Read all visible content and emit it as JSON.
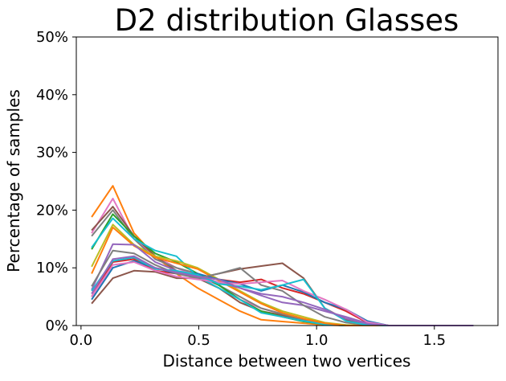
{
  "chart_data": {
    "type": "line",
    "title": "D2 distribution Glasses",
    "xlabel": "Distance between two vertices",
    "ylabel": "Percentage of samples",
    "xlim": [
      -0.02,
      1.77
    ],
    "ylim": [
      0,
      0.5
    ],
    "x_ticks": [
      0.0,
      0.5,
      1.0,
      1.5
    ],
    "x_tick_labels": [
      "0.0",
      "0.5",
      "1.0",
      "1.5"
    ],
    "y_ticks": [
      0,
      0.1,
      0.2,
      0.3,
      0.4,
      0.5
    ],
    "y_tick_labels": [
      "0%",
      "10%",
      "20%",
      "30%",
      "40%",
      "50%"
    ],
    "grid": false,
    "legend": "none",
    "x": [
      0.045,
      0.135,
      0.225,
      0.315,
      0.405,
      0.495,
      0.585,
      0.675,
      0.765,
      0.855,
      0.945,
      1.035,
      1.125,
      1.215,
      1.305,
      1.395,
      1.485,
      1.575,
      1.665
    ],
    "series": [
      {
        "color": "#ff7f0e",
        "values": [
          0.188,
          0.242,
          0.16,
          0.12,
          0.09,
          0.065,
          0.045,
          0.025,
          0.01,
          0.007,
          0.004,
          0.001,
          0.0,
          0.0,
          0.0,
          0.0,
          0.0,
          0.0,
          0.0
        ]
      },
      {
        "color": "#e377c2",
        "values": [
          0.16,
          0.22,
          0.15,
          0.12,
          0.1,
          0.085,
          0.07,
          0.045,
          0.03,
          0.02,
          0.01,
          0.003,
          0.0,
          0.0,
          0.0,
          0.0,
          0.0,
          0.0,
          0.0
        ]
      },
      {
        "color": "#8c564b",
        "values": [
          0.165,
          0.206,
          0.155,
          0.12,
          0.095,
          0.082,
          0.065,
          0.04,
          0.025,
          0.018,
          0.008,
          0.002,
          0.0,
          0.0,
          0.0,
          0.0,
          0.0,
          0.0,
          0.0
        ]
      },
      {
        "color": "#7f7f7f",
        "values": [
          0.155,
          0.2,
          0.15,
          0.115,
          0.1,
          0.09,
          0.07,
          0.05,
          0.03,
          0.02,
          0.01,
          0.002,
          0.0,
          0.0,
          0.0,
          0.0,
          0.0,
          0.0,
          0.0
        ]
      },
      {
        "color": "#2ca02c",
        "values": [
          0.132,
          0.193,
          0.155,
          0.125,
          0.11,
          0.09,
          0.07,
          0.045,
          0.025,
          0.015,
          0.007,
          0.002,
          0.0,
          0.0,
          0.0,
          0.0,
          0.0,
          0.0,
          0.0
        ]
      },
      {
        "color": "#17becf",
        "values": [
          0.135,
          0.186,
          0.15,
          0.13,
          0.12,
          0.085,
          0.065,
          0.045,
          0.022,
          0.015,
          0.008,
          0.002,
          0.0,
          0.0,
          0.0,
          0.0,
          0.0,
          0.0,
          0.0
        ]
      },
      {
        "color": "#bcbd22",
        "values": [
          0.102,
          0.175,
          0.14,
          0.12,
          0.112,
          0.1,
          0.08,
          0.06,
          0.04,
          0.025,
          0.015,
          0.005,
          0.001,
          0.0,
          0.0,
          0.0,
          0.0,
          0.0,
          0.0
        ]
      },
      {
        "color": "#ff7f0e",
        "values": [
          0.09,
          0.17,
          0.138,
          0.118,
          0.108,
          0.098,
          0.078,
          0.058,
          0.038,
          0.022,
          0.012,
          0.004,
          0.0,
          0.0,
          0.0,
          0.0,
          0.0,
          0.0,
          0.0
        ]
      },
      {
        "color": "#d62728",
        "values": [
          0.05,
          0.11,
          0.115,
          0.095,
          0.09,
          0.085,
          0.08,
          0.075,
          0.08,
          0.065,
          0.055,
          0.04,
          0.025,
          0.005,
          0.0,
          0.0,
          0.0,
          0.0,
          0.0
        ]
      },
      {
        "color": "#1f77b4",
        "values": [
          0.045,
          0.1,
          0.112,
          0.1,
          0.09,
          0.09,
          0.08,
          0.072,
          0.06,
          0.07,
          0.058,
          0.04,
          0.028,
          0.008,
          0.0,
          0.0,
          0.0,
          0.0,
          0.0
        ]
      },
      {
        "color": "#9467bd",
        "values": [
          0.062,
          0.141,
          0.14,
          0.11,
          0.095,
          0.085,
          0.075,
          0.065,
          0.052,
          0.04,
          0.035,
          0.025,
          0.015,
          0.004,
          0.0,
          0.0,
          0.0,
          0.0,
          0.0
        ]
      },
      {
        "color": "#8c564b",
        "values": [
          0.038,
          0.082,
          0.095,
          0.093,
          0.082,
          0.082,
          0.09,
          0.098,
          0.103,
          0.108,
          0.082,
          0.03,
          0.01,
          0.002,
          0.0,
          0.0,
          0.0,
          0.0,
          0.0
        ]
      },
      {
        "color": "#7f7f7f",
        "values": [
          0.068,
          0.13,
          0.125,
          0.105,
          0.09,
          0.082,
          0.09,
          0.1,
          0.07,
          0.06,
          0.035,
          0.015,
          0.005,
          0.001,
          0.0,
          0.0,
          0.0,
          0.0,
          0.0
        ]
      },
      {
        "color": "#e377c2",
        "values": [
          0.05,
          0.105,
          0.11,
          0.095,
          0.085,
          0.08,
          0.075,
          0.072,
          0.075,
          0.078,
          0.06,
          0.045,
          0.028,
          0.006,
          0.0,
          0.0,
          0.0,
          0.0,
          0.0
        ]
      },
      {
        "color": "#17becf",
        "values": [
          0.06,
          0.112,
          0.118,
          0.098,
          0.095,
          0.088,
          0.072,
          0.068,
          0.062,
          0.07,
          0.08,
          0.03,
          0.008,
          0.001,
          0.0,
          0.0,
          0.0,
          0.0,
          0.0
        ]
      },
      {
        "color": "#9467bd",
        "values": [
          0.055,
          0.115,
          0.12,
          0.1,
          0.092,
          0.085,
          0.08,
          0.065,
          0.055,
          0.05,
          0.04,
          0.028,
          0.012,
          0.003,
          0.0,
          0.0,
          0.0,
          0.0,
          0.0
        ]
      }
    ]
  }
}
